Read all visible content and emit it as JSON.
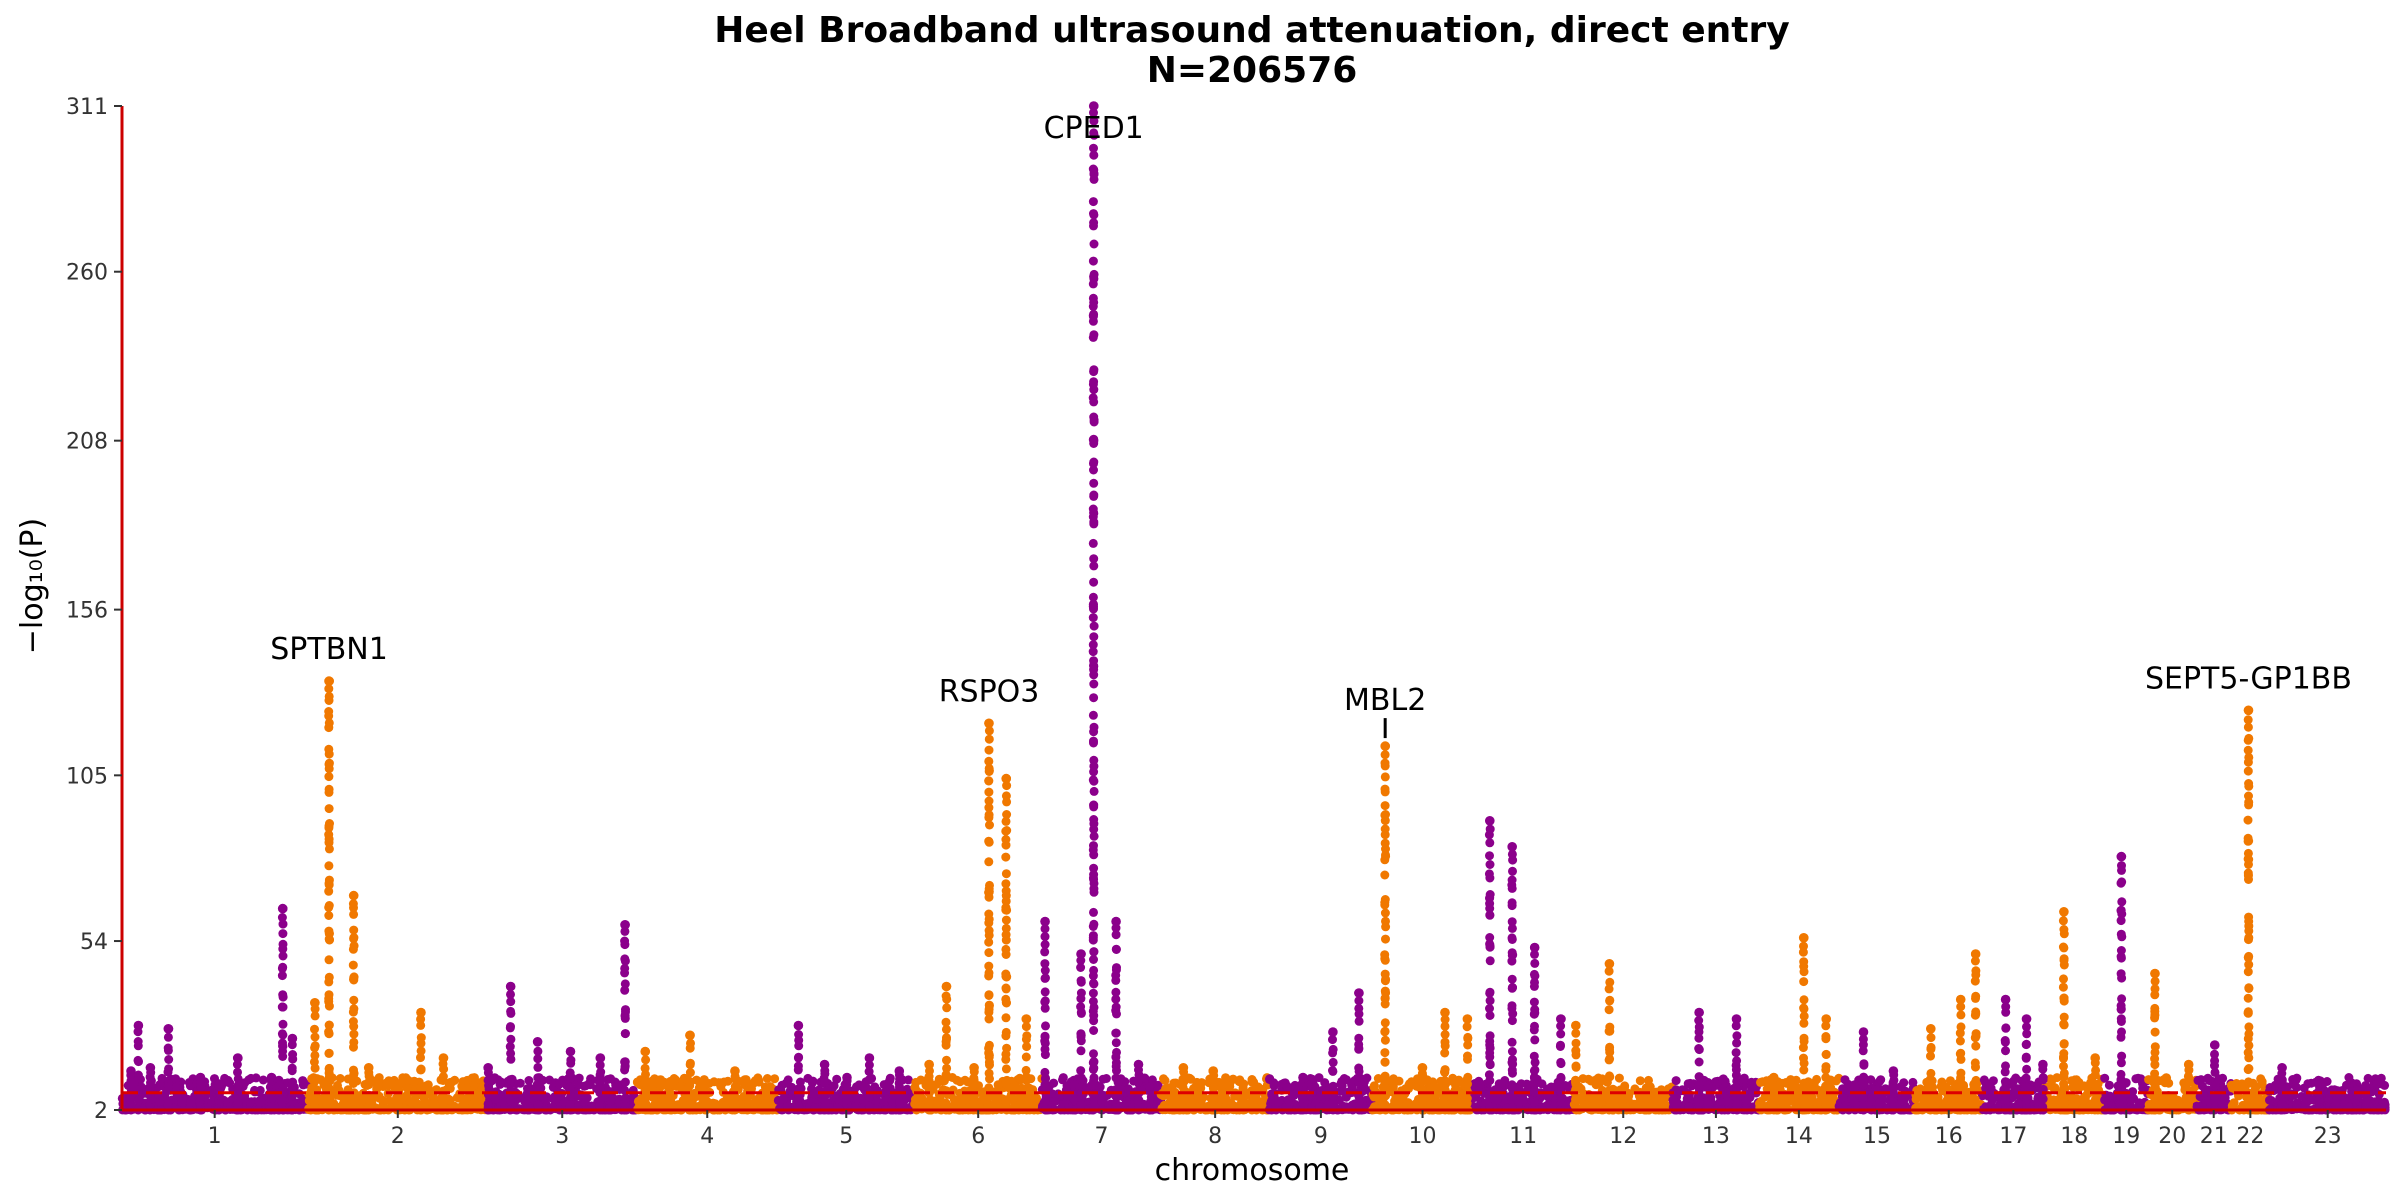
{
  "chart_data": {
    "type": "scatter",
    "title": "Heel Broadband ultrasound attenuation, direct entry",
    "subtitle": "N=206576",
    "xlabel": "chromosome",
    "ylabel": "−log₁₀(P)",
    "ylim": [
      2,
      311
    ],
    "yticks": [
      2,
      54,
      105,
      156,
      208,
      260,
      311
    ],
    "significance_line": 7.3,
    "colors": {
      "odd": "#8b008b",
      "even": "#f07800",
      "axis": "#cc0000",
      "threshold": "#dd0000"
    },
    "chromosomes": [
      {
        "label": "1",
        "start": 0,
        "end": 248
      },
      {
        "label": "2",
        "start": 248,
        "end": 490
      },
      {
        "label": "3",
        "start": 490,
        "end": 688
      },
      {
        "label": "4",
        "start": 688,
        "end": 878
      },
      {
        "label": "5",
        "start": 878,
        "end": 1060
      },
      {
        "label": "6",
        "start": 1060,
        "end": 1231
      },
      {
        "label": "7",
        "start": 1231,
        "end": 1390
      },
      {
        "label": "8",
        "start": 1390,
        "end": 1535
      },
      {
        "label": "9",
        "start": 1535,
        "end": 1673
      },
      {
        "label": "10",
        "start": 1673,
        "end": 1807
      },
      {
        "label": "11",
        "start": 1807,
        "end": 1942
      },
      {
        "label": "12",
        "start": 1942,
        "end": 2075
      },
      {
        "label": "13",
        "start": 2075,
        "end": 2190
      },
      {
        "label": "14",
        "start": 2190,
        "end": 2297
      },
      {
        "label": "15",
        "start": 2297,
        "end": 2399
      },
      {
        "label": "16",
        "start": 2399,
        "end": 2489
      },
      {
        "label": "17",
        "start": 2489,
        "end": 2572
      },
      {
        "label": "18",
        "start": 2572,
        "end": 2652
      },
      {
        "label": "19",
        "start": 2652,
        "end": 2711
      },
      {
        "label": "20",
        "start": 2711,
        "end": 2775
      },
      {
        "label": "21",
        "start": 2775,
        "end": 2822
      },
      {
        "label": "22",
        "start": 2822,
        "end": 2873
      },
      {
        "label": "23",
        "start": 2873,
        "end": 3029
      }
    ],
    "peaks": [
      {
        "x": 12,
        "top": 14
      },
      {
        "x": 22,
        "top": 28
      },
      {
        "x": 38,
        "top": 15
      },
      {
        "x": 62,
        "top": 27
      },
      {
        "x": 105,
        "top": 12
      },
      {
        "x": 130,
        "top": 10
      },
      {
        "x": 155,
        "top": 18
      },
      {
        "x": 200,
        "top": 12
      },
      {
        "x": 215,
        "top": 64
      },
      {
        "x": 228,
        "top": 24
      },
      {
        "x": 258,
        "top": 35
      },
      {
        "x": 277,
        "top": 134
      },
      {
        "x": 310,
        "top": 68
      },
      {
        "x": 330,
        "top": 15
      },
      {
        "x": 370,
        "top": 10
      },
      {
        "x": 400,
        "top": 32
      },
      {
        "x": 430,
        "top": 18
      },
      {
        "x": 490,
        "top": 15
      },
      {
        "x": 520,
        "top": 40
      },
      {
        "x": 556,
        "top": 23
      },
      {
        "x": 600,
        "top": 20
      },
      {
        "x": 640,
        "top": 18
      },
      {
        "x": 673,
        "top": 59
      },
      {
        "x": 700,
        "top": 20
      },
      {
        "x": 760,
        "top": 25
      },
      {
        "x": 820,
        "top": 14
      },
      {
        "x": 905,
        "top": 28
      },
      {
        "x": 940,
        "top": 16
      },
      {
        "x": 970,
        "top": 12
      },
      {
        "x": 1000,
        "top": 18
      },
      {
        "x": 1040,
        "top": 14
      },
      {
        "x": 1080,
        "top": 16
      },
      {
        "x": 1103,
        "top": 40
      },
      {
        "x": 1140,
        "top": 15
      },
      {
        "x": 1160,
        "top": 121
      },
      {
        "x": 1183,
        "top": 104
      },
      {
        "x": 1210,
        "top": 30
      },
      {
        "x": 1235,
        "top": 60
      },
      {
        "x": 1283,
        "top": 50
      },
      {
        "x": 1300,
        "top": 311
      },
      {
        "x": 1330,
        "top": 60
      },
      {
        "x": 1360,
        "top": 16
      },
      {
        "x": 1420,
        "top": 15
      },
      {
        "x": 1460,
        "top": 14
      },
      {
        "x": 1500,
        "top": 10
      },
      {
        "x": 1580,
        "top": 12
      },
      {
        "x": 1620,
        "top": 26
      },
      {
        "x": 1655,
        "top": 38
      },
      {
        "x": 1690,
        "top": 114
      },
      {
        "x": 1740,
        "top": 15
      },
      {
        "x": 1770,
        "top": 32
      },
      {
        "x": 1800,
        "top": 30
      },
      {
        "x": 1830,
        "top": 91
      },
      {
        "x": 1860,
        "top": 83
      },
      {
        "x": 1890,
        "top": 52
      },
      {
        "x": 1925,
        "top": 30
      },
      {
        "x": 1945,
        "top": 28
      },
      {
        "x": 1990,
        "top": 47
      },
      {
        "x": 2040,
        "top": 8
      },
      {
        "x": 2110,
        "top": 32
      },
      {
        "x": 2160,
        "top": 30
      },
      {
        "x": 2210,
        "top": 12
      },
      {
        "x": 2250,
        "top": 55
      },
      {
        "x": 2280,
        "top": 30
      },
      {
        "x": 2330,
        "top": 26
      },
      {
        "x": 2370,
        "top": 14
      },
      {
        "x": 2420,
        "top": 27
      },
      {
        "x": 2460,
        "top": 36
      },
      {
        "x": 2480,
        "top": 50
      },
      {
        "x": 2520,
        "top": 36
      },
      {
        "x": 2548,
        "top": 30
      },
      {
        "x": 2570,
        "top": 16
      },
      {
        "x": 2598,
        "top": 63
      },
      {
        "x": 2640,
        "top": 18
      },
      {
        "x": 2675,
        "top": 80
      },
      {
        "x": 2720,
        "top": 44
      },
      {
        "x": 2765,
        "top": 16
      },
      {
        "x": 2800,
        "top": 22
      },
      {
        "x": 2845,
        "top": 125
      },
      {
        "x": 2890,
        "top": 15
      },
      {
        "x": 2940,
        "top": 10
      },
      {
        "x": 2990,
        "top": 8
      }
    ],
    "annotations": [
      {
        "gene": "SPTBN1",
        "x": 277,
        "y": 134
      },
      {
        "gene": "RSPO3",
        "x": 1160,
        "y": 121
      },
      {
        "gene": "CPED1",
        "x": 1300,
        "y": 311
      },
      {
        "gene": "MBL2",
        "x": 1690,
        "y": 114
      },
      {
        "gene": "SEPT5-GP1BB",
        "x": 2845,
        "y": 125
      }
    ]
  }
}
